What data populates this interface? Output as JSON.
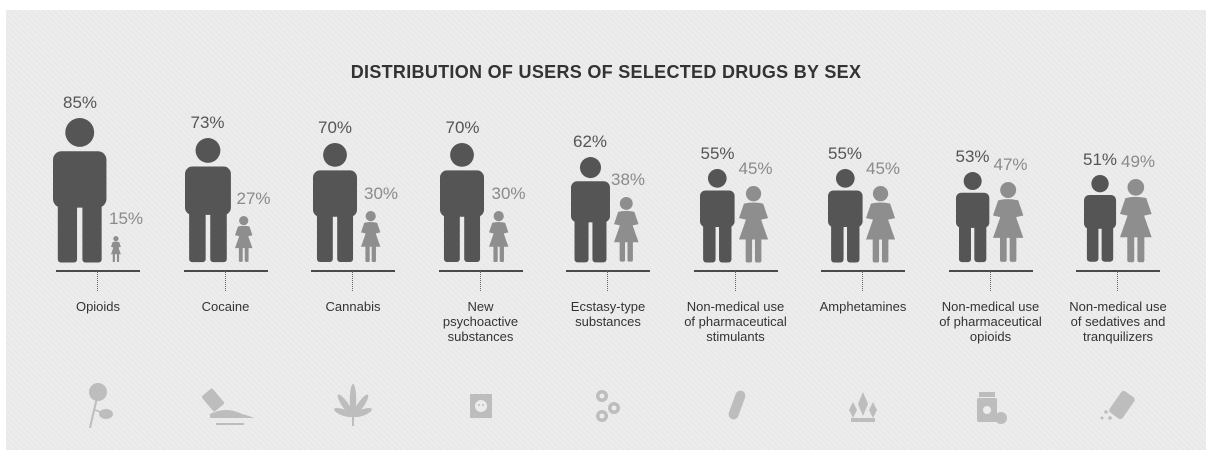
{
  "chart_data": {
    "type": "pictograph",
    "title": "DISTRIBUTION OF USERS OF SELECTED DRUGS BY SEX",
    "categories": [
      "Opioids",
      "Cocaine",
      "Cannabis",
      "New psychoactive substances",
      "Ecstasy-type substances",
      "Non-medical use of pharmaceutical stimulants",
      "Amphetamines",
      "Non-medical use of pharmaceutical opioids",
      "Non-medical use of sedatives and tranquilizers"
    ],
    "category_lines": [
      [
        "Opioids"
      ],
      [
        "Cocaine"
      ],
      [
        "Cannabis"
      ],
      [
        "New",
        "psychoactive",
        "substances"
      ],
      [
        "Ecstasy-type",
        "substances"
      ],
      [
        "Non-medical use",
        "of pharmaceutical",
        "stimulants"
      ],
      [
        "Amphetamines"
      ],
      [
        "Non-medical use",
        "of pharmaceutical",
        "opioids"
      ],
      [
        "Non-medical use",
        "of sedatives and",
        "tranquilizers"
      ]
    ],
    "series": [
      {
        "values": [
          85,
          73,
          70,
          70,
          62,
          55,
          55,
          53,
          51
        ],
        "color": "#555555"
      },
      {
        "values": [
          15,
          27,
          30,
          30,
          38,
          45,
          45,
          47,
          49
        ],
        "color": "#8e8e8e"
      }
    ],
    "value_labels": {
      "male": [
        "85%",
        "73%",
        "70%",
        "70%",
        "62%",
        "55%",
        "55%",
        "53%",
        "51%"
      ],
      "female": [
        "15%",
        "27%",
        "30%",
        "30%",
        "38%",
        "45%",
        "45%",
        "47%",
        "49%"
      ]
    },
    "icons": [
      "poppy-icon",
      "cocaine-card-icon",
      "cannabis-leaf-icon",
      "blotter-tab-icon",
      "ecstasy-pills-icon",
      "capsule-icon",
      "crystals-icon",
      "pill-bottle-icon",
      "blister-pack-icon"
    ]
  }
}
